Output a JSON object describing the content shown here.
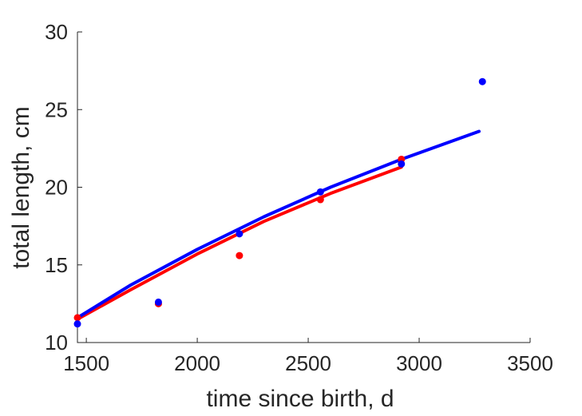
{
  "chart_data": {
    "type": "scatter",
    "title": "",
    "xlabel": "time since birth, d",
    "ylabel": "total length, cm",
    "xlim": [
      1460,
      3500
    ],
    "ylim": [
      10,
      30
    ],
    "xticks": [
      1500,
      2000,
      2500,
      3000,
      3500
    ],
    "yticks": [
      10,
      15,
      20,
      25,
      30
    ],
    "grid": false,
    "legend": "none",
    "series": [
      {
        "kind": "points",
        "color": "#ff0000",
        "x": [
          1460,
          1825,
          2190,
          2555,
          2920
        ],
        "y": [
          11.6,
          12.5,
          15.6,
          19.2,
          21.8
        ]
      },
      {
        "kind": "points",
        "color": "#0000ff",
        "x": [
          1460,
          1825,
          2190,
          2555,
          2920,
          3285
        ],
        "y": [
          11.2,
          12.6,
          17.0,
          19.7,
          21.5,
          26.8
        ]
      },
      {
        "kind": "line",
        "color": "#ff0000",
        "x": [
          1460,
          1700,
          2000,
          2300,
          2600,
          2920
        ],
        "y": [
          11.5,
          13.4,
          15.7,
          17.8,
          19.6,
          21.3
        ]
      },
      {
        "kind": "line",
        "color": "#0000ff",
        "x": [
          1460,
          1700,
          2000,
          2300,
          2600,
          2920,
          3270
        ],
        "y": [
          11.6,
          13.7,
          16.0,
          18.1,
          20.0,
          21.8,
          23.6
        ]
      }
    ]
  }
}
